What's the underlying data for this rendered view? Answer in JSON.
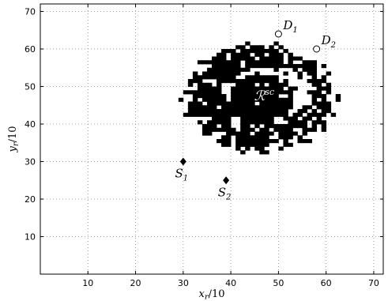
{
  "chart_data": {
    "type": "scatter",
    "xlim": [
      0,
      72
    ],
    "ylim": [
      0,
      72
    ],
    "xticks": [
      10,
      20,
      30,
      40,
      50,
      60,
      70
    ],
    "yticks": [
      10,
      20,
      30,
      40,
      50,
      60,
      70
    ],
    "xlabel": {
      "base": "x",
      "sub": "r",
      "rest": "/10"
    },
    "ylabel": {
      "base": "y",
      "sub": "r",
      "rest": "/10"
    },
    "grid": true,
    "region": {
      "label_base": "ℛ",
      "label_sup": "sc",
      "center": [
        46,
        47
      ],
      "hole_center": [
        48,
        48.5
      ],
      "hole_rx": 9.2,
      "hole_ry": 6.6,
      "inner_rx": 7.0,
      "inner_ry": 6.5,
      "outer_rx": 15.5,
      "outer_ry": 14.2,
      "color": "#000000"
    },
    "points": [
      {
        "id": "S1",
        "name": "S",
        "sub": "1",
        "x": 30,
        "y": 30,
        "marker": "diamond",
        "label_pos": "below"
      },
      {
        "id": "S2",
        "name": "S",
        "sub": "2",
        "x": 39,
        "y": 25,
        "marker": "diamond",
        "label_pos": "below"
      },
      {
        "id": "D1",
        "name": "D",
        "sub": "1",
        "x": 50,
        "y": 64,
        "marker": "circle",
        "label_pos": "above-right"
      },
      {
        "id": "D2",
        "name": "D",
        "sub": "2",
        "x": 58,
        "y": 60,
        "marker": "circle",
        "label_pos": "above-right"
      }
    ]
  }
}
